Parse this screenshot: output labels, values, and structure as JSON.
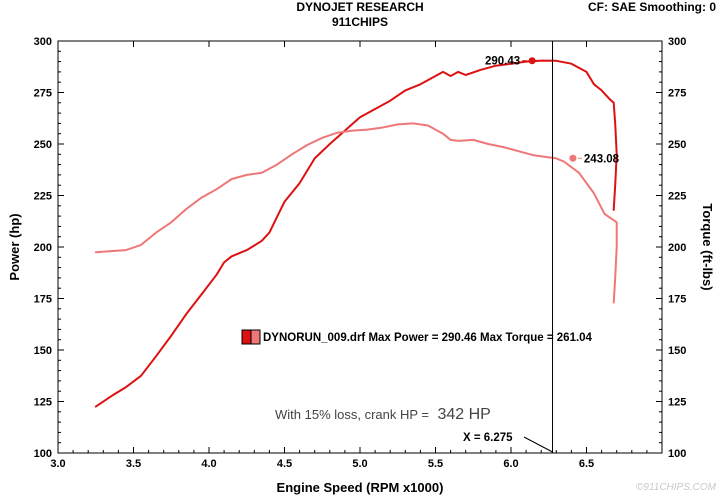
{
  "header": {
    "title": "DYNOJET RESEARCH",
    "subtitle": "911CHIPS",
    "settings": "CF: SAE  Smoothing: 0"
  },
  "watermark": "©911CHIPS.COM",
  "chart_data": {
    "type": "line",
    "xlabel": "Engine Speed (RPM x1000)",
    "ylabel_left": "Power (hp)",
    "ylabel_right": "Torque (ft-lbs)",
    "xlim": [
      3.0,
      7.0
    ],
    "ylim": [
      100,
      300
    ],
    "x_ticks": [
      "3.0",
      "3.5",
      "4.0",
      "4.5",
      "5.0",
      "5.5",
      "6.0",
      "6.5"
    ],
    "y_ticks": [
      "100",
      "125",
      "150",
      "175",
      "200",
      "225",
      "250",
      "275",
      "300"
    ],
    "grid": false,
    "colors": {
      "power": "#dd1111",
      "torque": "#ee7777",
      "cursor": "#000000"
    },
    "series": [
      {
        "name": "power",
        "x": [
          3.25,
          3.35,
          3.45,
          3.55,
          3.65,
          3.75,
          3.85,
          3.95,
          4.05,
          4.1,
          4.15,
          4.25,
          4.35,
          4.4,
          4.5,
          4.6,
          4.7,
          4.8,
          4.9,
          5.0,
          5.1,
          5.2,
          5.3,
          5.4,
          5.5,
          5.55,
          5.6,
          5.65,
          5.7,
          5.8,
          5.9,
          6.0,
          6.1,
          6.2,
          6.3,
          6.4,
          6.5,
          6.55,
          6.6,
          6.65,
          6.68,
          6.69,
          6.7,
          6.69,
          6.68
        ],
        "values": [
          122.5,
          127.5,
          132,
          137.5,
          147,
          157,
          167.5,
          177,
          186.5,
          192.5,
          195.5,
          198.5,
          203,
          207,
          222,
          231,
          243,
          250,
          256.5,
          263,
          267,
          271,
          276,
          279,
          283,
          285,
          283,
          285,
          283.5,
          286,
          288,
          289,
          290,
          290.5,
          290.4,
          289,
          285,
          279,
          276,
          272,
          270,
          260,
          245,
          230,
          218
        ]
      },
      {
        "name": "torque",
        "x": [
          3.25,
          3.35,
          3.45,
          3.55,
          3.65,
          3.75,
          3.85,
          3.95,
          4.05,
          4.15,
          4.25,
          4.35,
          4.45,
          4.55,
          4.65,
          4.75,
          4.85,
          4.95,
          5.05,
          5.15,
          5.25,
          5.35,
          5.45,
          5.55,
          5.6,
          5.65,
          5.75,
          5.85,
          5.95,
          6.05,
          6.15,
          6.25,
          6.3,
          6.35,
          6.45,
          6.55,
          6.62,
          6.68,
          6.7,
          6.7,
          6.69,
          6.68
        ],
        "values": [
          197.5,
          198,
          198.5,
          201,
          207,
          212,
          218.5,
          224,
          228,
          233,
          235,
          236,
          240,
          245,
          249.5,
          253,
          255.5,
          256.5,
          257,
          258,
          259.5,
          260,
          259,
          255,
          252,
          251.5,
          252,
          250,
          248.5,
          246.5,
          244.5,
          243.5,
          243,
          241.5,
          236,
          226,
          216,
          213,
          212,
          200,
          185,
          173
        ]
      }
    ],
    "peaks": [
      {
        "series": "power",
        "x": 6.14,
        "y": 290.43,
        "label": "290.43"
      },
      {
        "series": "torque",
        "x": 6.41,
        "y": 243.08,
        "label": "243.08"
      }
    ],
    "cursor": {
      "x": 6.275,
      "label": "X = 6.275"
    },
    "legend": {
      "entry": "DYNORUN_009.drf Max Power = 290.46 Max Torque = 261.04",
      "placement": "center"
    },
    "annotation": {
      "prefix": "With 15% loss, crank HP =",
      "value": "342 HP"
    }
  }
}
